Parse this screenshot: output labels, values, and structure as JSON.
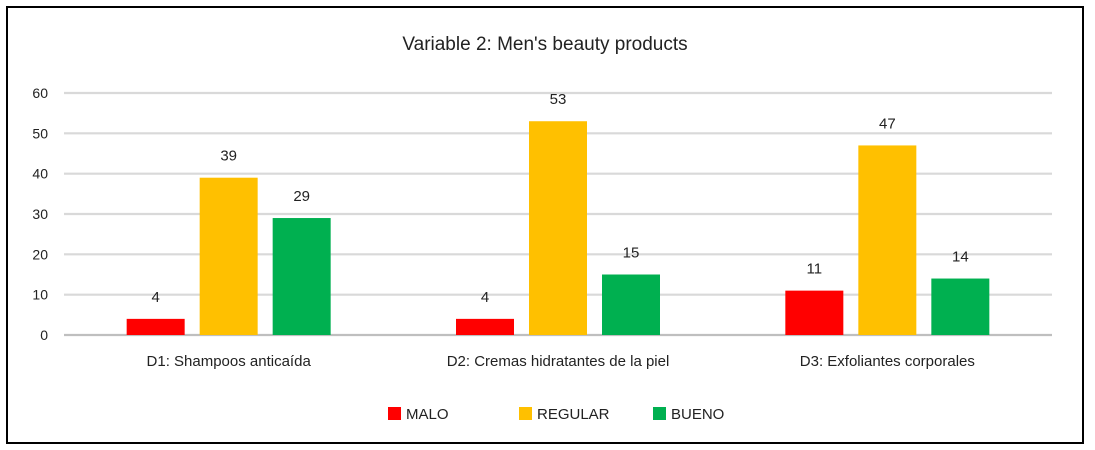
{
  "chart_data": {
    "type": "bar",
    "title": "Variable 2: Men's beauty products",
    "xlabel": "",
    "ylabel": "",
    "categories": [
      "D1: Shampoos anticaída",
      "D2: Cremas hidratantes de la piel",
      "D3: Exfoliantes corporales"
    ],
    "series": [
      {
        "name": "MALO",
        "color": "#ff0000",
        "values": [
          4,
          4,
          11
        ]
      },
      {
        "name": "REGULAR",
        "color": "#ffc000",
        "values": [
          39,
          53,
          47
        ]
      },
      {
        "name": "BUENO",
        "color": "#00b050",
        "values": [
          29,
          15,
          14
        ]
      }
    ],
    "ylim": [
      0,
      60
    ],
    "yticks": [
      0,
      10,
      20,
      30,
      40,
      50,
      60
    ],
    "grid": true,
    "legend_position": "bottom",
    "data_labels": true
  }
}
